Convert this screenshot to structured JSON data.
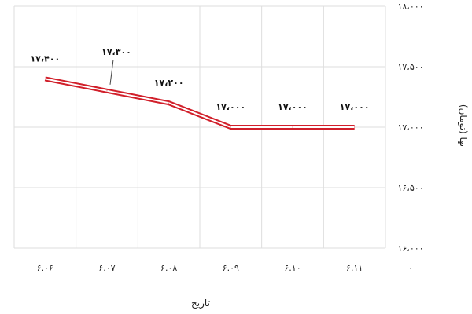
{
  "chart_data": {
    "type": "line",
    "categories": [
      "۶.۰۶",
      "۶.۰۷",
      "۶.۰۸",
      "۶.۰۹",
      "۶.۱۰",
      "۶.۱۱"
    ],
    "series": [
      {
        "values": [
          17400,
          17300,
          17200,
          17000,
          17000,
          17000
        ],
        "color": "#d11f2a"
      }
    ],
    "data_labels": [
      "۱۷،۴۰۰",
      "۱۷،۳۰۰",
      "۱۷،۲۰۰",
      "۱۷،۰۰۰",
      "۱۷،۰۰۰",
      "۱۷،۰۰۰"
    ],
    "yticks": [
      16000,
      16500,
      17000,
      17500,
      18000
    ],
    "ytick_labels": [
      "۱۶،۰۰۰",
      "۱۶،۵۰۰",
      "۱۷،۰۰۰",
      "۱۷،۵۰۰",
      "۱۸،۰۰۰"
    ],
    "ylim": [
      16000,
      18000
    ],
    "xlabel": "تاریخ",
    "ylabel": "بها (تومان)",
    "corner_label": "۰",
    "grid": true,
    "line_color": "#d11f2a",
    "grid_color": "#dddddd"
  }
}
